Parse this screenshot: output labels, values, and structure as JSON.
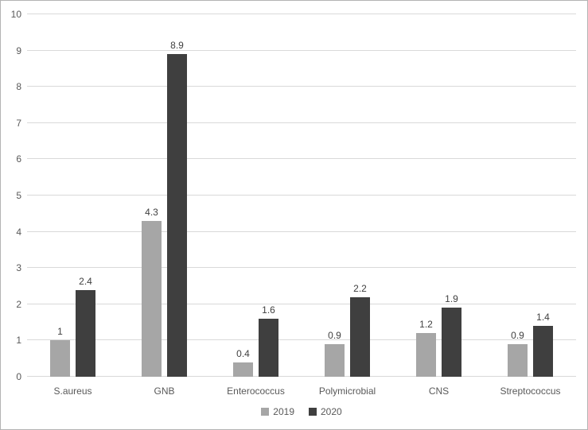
{
  "chart_data": {
    "type": "bar",
    "title": "",
    "xlabel": "",
    "ylabel": "",
    "categories": [
      "S.aureus",
      "GNB",
      "Enterococcus",
      "Polymicrobial",
      "CNS",
      "Streptococcus"
    ],
    "series": [
      {
        "name": "2019",
        "color": "#a6a6a6",
        "values": [
          1,
          4.3,
          0.4,
          0.9,
          1.2,
          0.9
        ]
      },
      {
        "name": "2020",
        "color": "#3f3f3f",
        "values": [
          2.4,
          8.9,
          1.6,
          2.2,
          1.9,
          1.4
        ]
      }
    ],
    "data_labels": {
      "2019": [
        "1",
        "4.3",
        "0.4",
        "0.9",
        "1.2",
        "0.9"
      ],
      "2020": [
        "2.4",
        "8.9",
        "1.6",
        "2.2",
        "1.9",
        "1.4"
      ]
    },
    "ylim": [
      0,
      10
    ],
    "ytick_step": 1,
    "ytick_labels": [
      "0",
      "1",
      "2",
      "3",
      "4",
      "5",
      "6",
      "7",
      "8",
      "9",
      "10"
    ],
    "grid": true,
    "legend_position": "bottom",
    "colors": {
      "gridline": "#d9d9d9",
      "axis_text": "#595959",
      "data_label_text": "#404040",
      "background": "#ffffff",
      "frame_border": "#b3b3b3"
    }
  }
}
